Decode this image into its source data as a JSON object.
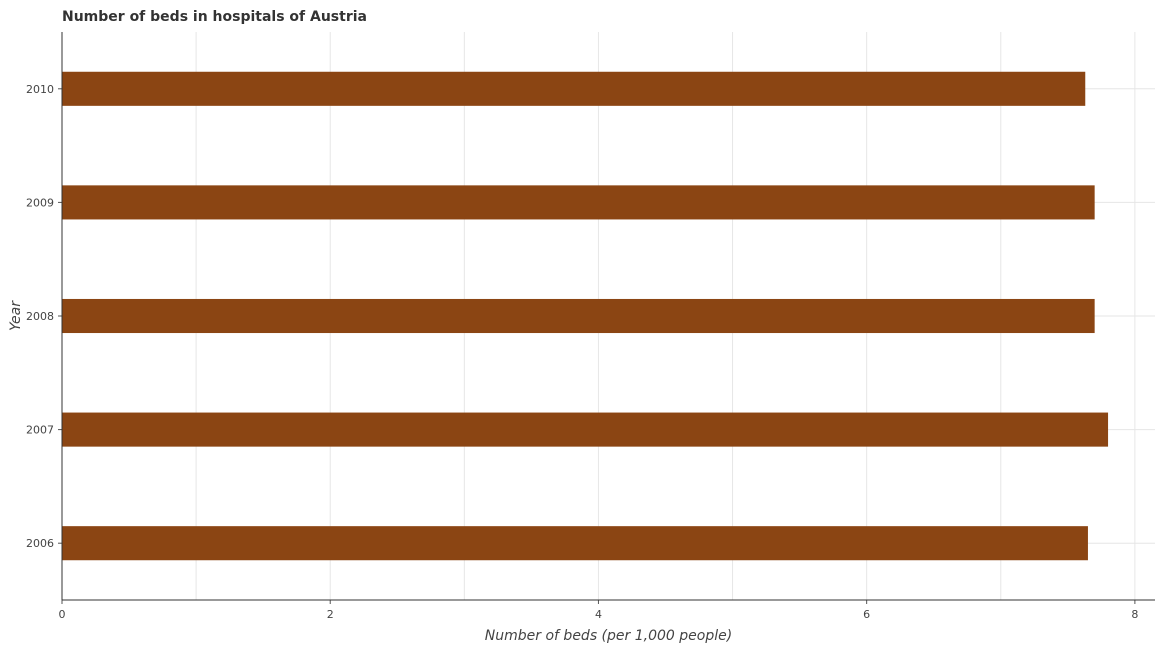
{
  "chart_data": {
    "type": "bar",
    "orientation": "horizontal",
    "title": "Number of beds in hospitals of Austria",
    "xlabel": "Number of beds (per 1,000 people)",
    "ylabel": "Year",
    "categories": [
      "2006",
      "2007",
      "2008",
      "2009",
      "2010"
    ],
    "values": [
      7.65,
      7.8,
      7.7,
      7.7,
      7.63
    ],
    "xlim": [
      0,
      8.15
    ],
    "xticks": [
      "0",
      "2",
      "4",
      "6",
      "8"
    ],
    "grid": true,
    "bar_color": "#8B4513"
  }
}
